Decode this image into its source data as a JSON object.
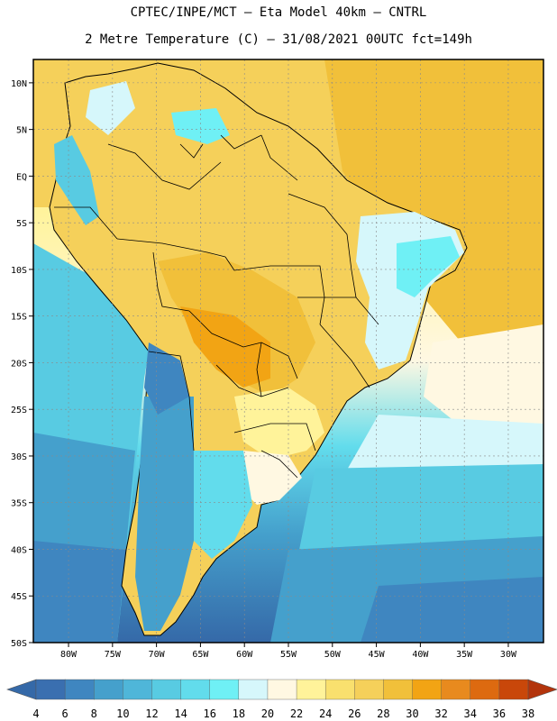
{
  "header": {
    "line1": "CPTEC/INPE/MCT  –  Eta Model 40km  – CNTRL",
    "line2": "2 Metre Temperature (C) – 31/08/2021 00UTC fct=149h"
  },
  "map": {
    "lon_range": [
      -84,
      -26
    ],
    "lat_range": [
      -50,
      12.5
    ],
    "lon_ticks": [
      "80W",
      "75W",
      "70W",
      "65W",
      "60W",
      "55W",
      "50W",
      "45W",
      "40W",
      "35W",
      "30W"
    ],
    "lon_values": [
      -80,
      -75,
      -70,
      -65,
      -60,
      -55,
      -50,
      -45,
      -40,
      -35,
      -30
    ],
    "lat_ticks": [
      "10N",
      "5N",
      "EQ",
      "5S",
      "10S",
      "15S",
      "20S",
      "25S",
      "30S",
      "35S",
      "40S",
      "45S",
      "50S"
    ],
    "lat_values": [
      10,
      5,
      0,
      -5,
      -10,
      -15,
      -20,
      -25,
      -30,
      -35,
      -40,
      -45,
      -50
    ],
    "ocean_base_color": "#f5d05a",
    "land_outline_color": "#000000"
  },
  "colorbar": {
    "labels": [
      "4",
      "6",
      "8",
      "10",
      "12",
      "14",
      "16",
      "18",
      "20",
      "22",
      "24",
      "26",
      "28",
      "30",
      "32",
      "34",
      "36",
      "38"
    ],
    "colors": [
      "#3a6fb0",
      "#3f86c0",
      "#45a0cc",
      "#4fb6d9",
      "#58cbe2",
      "#62dcec",
      "#6ff0f5",
      "#d6f7fb",
      "#fff8e2",
      "#fff39a",
      "#f9e06e",
      "#f5d05a",
      "#f1c03a",
      "#f2a414",
      "#e88a1e",
      "#dd6a10",
      "#c9470a",
      "#b8380a"
    ],
    "under_color": "#3569a8",
    "over_color": "#b3340c"
  }
}
